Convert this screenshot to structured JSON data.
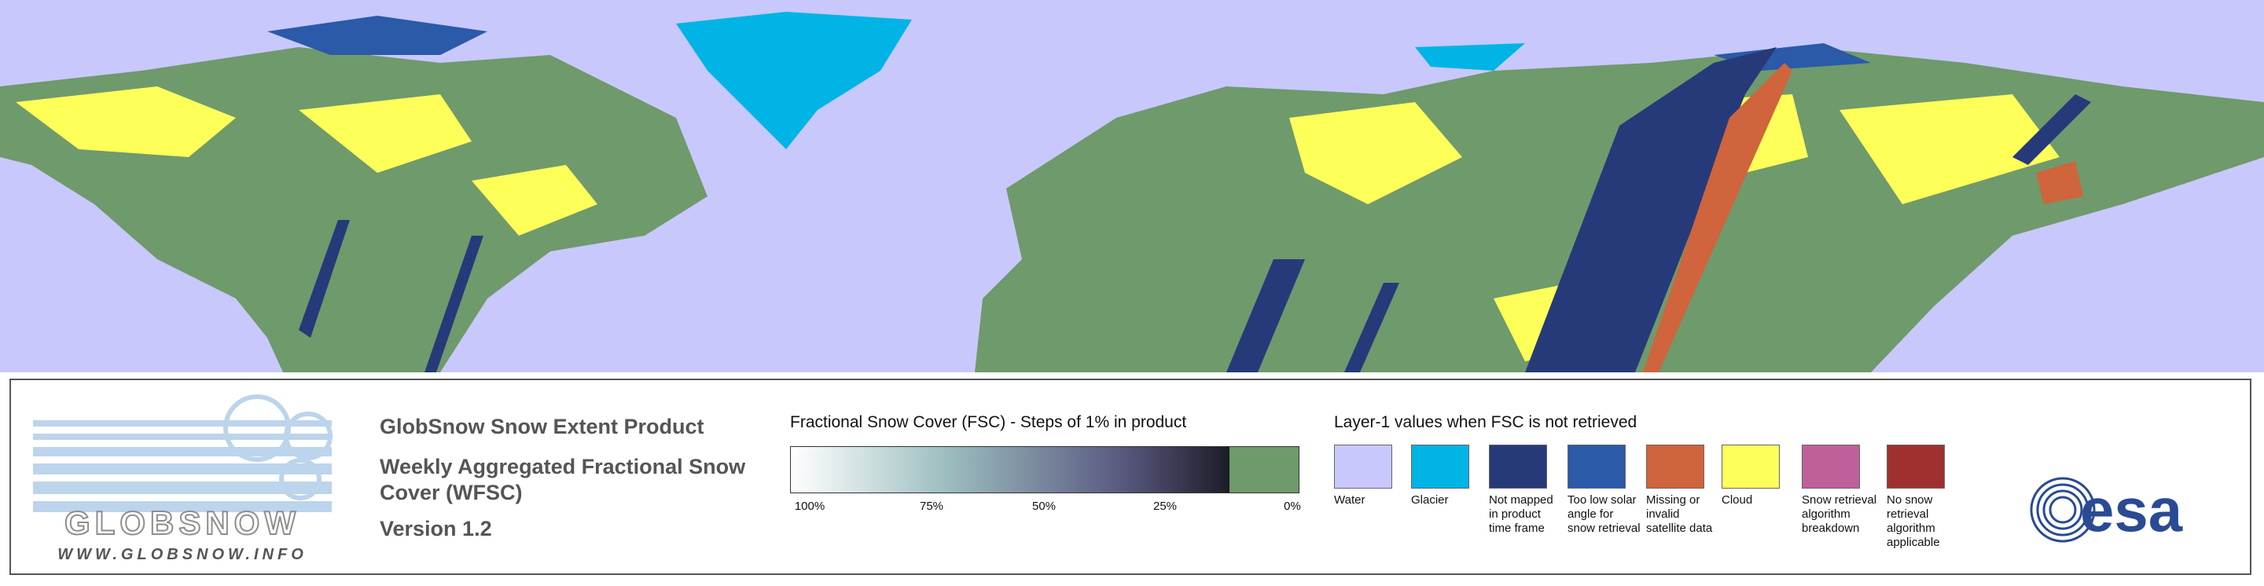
{
  "logo": {
    "name": "GLOBSNOW",
    "url": "WWW.GLOBSNOW.INFO"
  },
  "product": {
    "title": "GlobSnow Snow Extent Product",
    "subtitle": "Weekly Aggregated Fractional Snow Cover (WFSC)",
    "version": "Version 1.2"
  },
  "fsc_legend": {
    "title": "Fractional Snow Cover (FSC) - Steps of 1% in product",
    "ticks": [
      "100%",
      "75%",
      "50%",
      "25%",
      "0%"
    ],
    "no_snow_color": "#6f9a6c"
  },
  "layer1_legend": {
    "title": "Layer-1 values when FSC is not retrieved",
    "items": [
      {
        "label": "Water",
        "color": "#c8c8fc"
      },
      {
        "label": "Glacier",
        "color": "#00b4e6"
      },
      {
        "label": "Not mapped in product time frame",
        "color": "#263a7a"
      },
      {
        "label": "Too low solar angle for snow retrieval",
        "color": "#2a5aa8"
      },
      {
        "label": "Missing or invalid satellite data",
        "color": "#d0643c"
      },
      {
        "label": "Cloud",
        "color": "#ffff5a"
      },
      {
        "label": "Snow retrieval algorithm breakdown",
        "color": "#c0609a"
      },
      {
        "label": "No snow retrieval algorithm applicable",
        "color": "#a03030"
      }
    ]
  },
  "agency": "esa"
}
